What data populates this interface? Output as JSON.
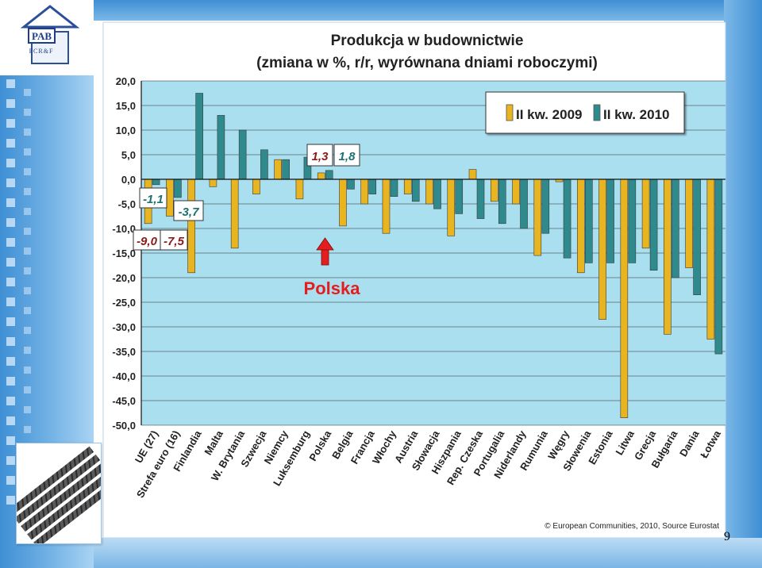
{
  "logo": {
    "text": "PAB",
    "subtext": "PCR&F"
  },
  "page_number": "9",
  "chart_data": {
    "type": "bar",
    "title": "Produkcja w budownictwie",
    "subtitle": "(zmiana w %, r/r, wyrównana dniami roboczymi)",
    "categories": [
      "UE (27)",
      "Strefa euro (16)",
      "Finlandia",
      "Malta",
      "W. Brytania",
      "Szwecja",
      "Niemcy",
      "Luksemburg",
      "Polska",
      "Belgia",
      "Francja",
      "Włochy",
      "Austria",
      "Słowacja",
      "Hiszpania",
      "Rep. Czeska",
      "Portugalia",
      "Niderlandy",
      "Rumunia",
      "Węgry",
      "Słowenia",
      "Estonia",
      "Litwa",
      "Grecja",
      "Bułgaria",
      "Dania",
      "Łotwa"
    ],
    "series": [
      {
        "name": "II kw. 2009",
        "color": "#e8b520",
        "values": [
          -9.0,
          -7.5,
          -19.0,
          -1.5,
          -14.0,
          -3.0,
          4.0,
          -4.0,
          1.3,
          -9.5,
          -5.0,
          -11.0,
          -3.0,
          -5.0,
          -11.5,
          2.0,
          -4.5,
          -5.0,
          -15.5,
          -0.5,
          -19.0,
          -28.5,
          -48.5,
          -14.0,
          -31.5,
          -18.0,
          -32.5
        ]
      },
      {
        "name": "II kw. 2010",
        "color": "#2e8a8c",
        "values": [
          -1.1,
          -3.7,
          17.5,
          13.0,
          10.0,
          6.0,
          4.0,
          4.5,
          1.8,
          -2.0,
          -3.0,
          -3.5,
          -4.5,
          -6.0,
          -7.0,
          -8.0,
          -9.0,
          -10.0,
          -11.0,
          -16.0,
          -17.0,
          -17.0,
          -17.0,
          -18.5,
          -20.0,
          -23.5,
          -35.5
        ]
      }
    ],
    "ylim": [
      -50,
      20
    ],
    "yticks": [
      "20,0",
      "15,0",
      "10,0",
      "5,0",
      "0,0",
      "-5,0",
      "-10,0",
      "-15,0",
      "-20,0",
      "-25,0",
      "-30,0",
      "-35,0",
      "-40,0",
      "-45,0",
      "-50,0"
    ],
    "ytick_values": [
      20,
      15,
      10,
      5,
      0,
      -5,
      -10,
      -15,
      -20,
      -25,
      -30,
      -35,
      -40,
      -45,
      -50
    ],
    "grid": true,
    "legend_position": "top-right",
    "value_labels": {
      "eu_2010": "-1,1",
      "euro_2010": "-3,7",
      "eu_2009": "-9,0",
      "euro_2009": "-7,5",
      "pl_2009": "1,3",
      "pl_2010": "1,8"
    },
    "annotation": "Polska",
    "source": "© European Communities, 2010, Source Eurostat"
  }
}
